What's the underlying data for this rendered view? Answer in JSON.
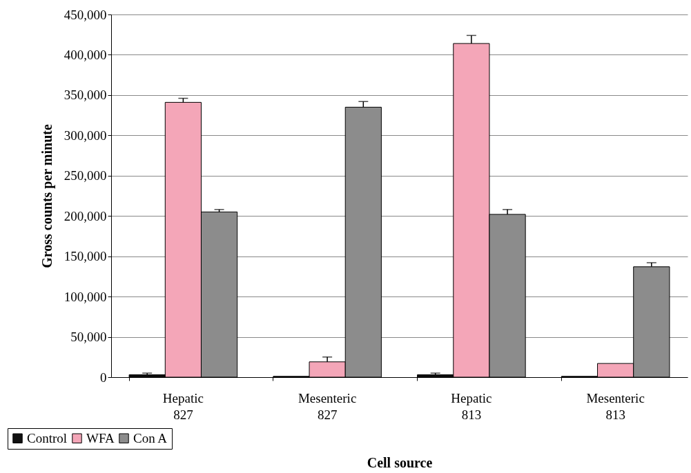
{
  "chart_data": {
    "type": "bar",
    "xlabel": "Cell source",
    "ylabel": "Gross counts per minute",
    "categories": [
      "Hepatic 827",
      "Mesenteric 827",
      "Hepatic 813",
      "Mesenteric 813"
    ],
    "series": [
      {
        "name": "Control",
        "color": "#111111",
        "values": [
          3000,
          1000,
          3000,
          1000
        ],
        "errors": [
          [
            3000,
            5000
          ],
          null,
          [
            3000,
            5000
          ],
          null
        ]
      },
      {
        "name": "WFA",
        "color": "#f4a6b8",
        "values": [
          341000,
          19000,
          414000,
          17000
        ],
        "errors": [
          [
            341000,
            346000
          ],
          [
            19000,
            25000
          ],
          [
            414000,
            424000
          ],
          null
        ]
      },
      {
        "name": "Con A",
        "color": "#8c8c8c",
        "values": [
          205000,
          335000,
          202000,
          137000
        ],
        "errors": [
          [
            205000,
            208000
          ],
          [
            335000,
            342000
          ],
          [
            202000,
            208000
          ],
          [
            137000,
            142000
          ]
        ]
      }
    ],
    "ylim": [
      0,
      450000
    ],
    "yticks": [
      0,
      {
        "value": 50000,
        "label": "50,000"
      },
      {
        "value": 100000,
        "label": "100,000"
      },
      {
        "value": 150000,
        "label": "150,000"
      },
      {
        "value": 200000,
        "label": "200,000"
      },
      {
        "value": 250000,
        "label": "250,000"
      },
      {
        "value": 300000,
        "label": "300,000"
      },
      {
        "value": 350000,
        "label": "350,000"
      },
      {
        "value": 400000,
        "label": "400,000"
      },
      {
        "value": 450000,
        "label": "450,000"
      }
    ],
    "grid": "y",
    "legend": "bottom left"
  }
}
